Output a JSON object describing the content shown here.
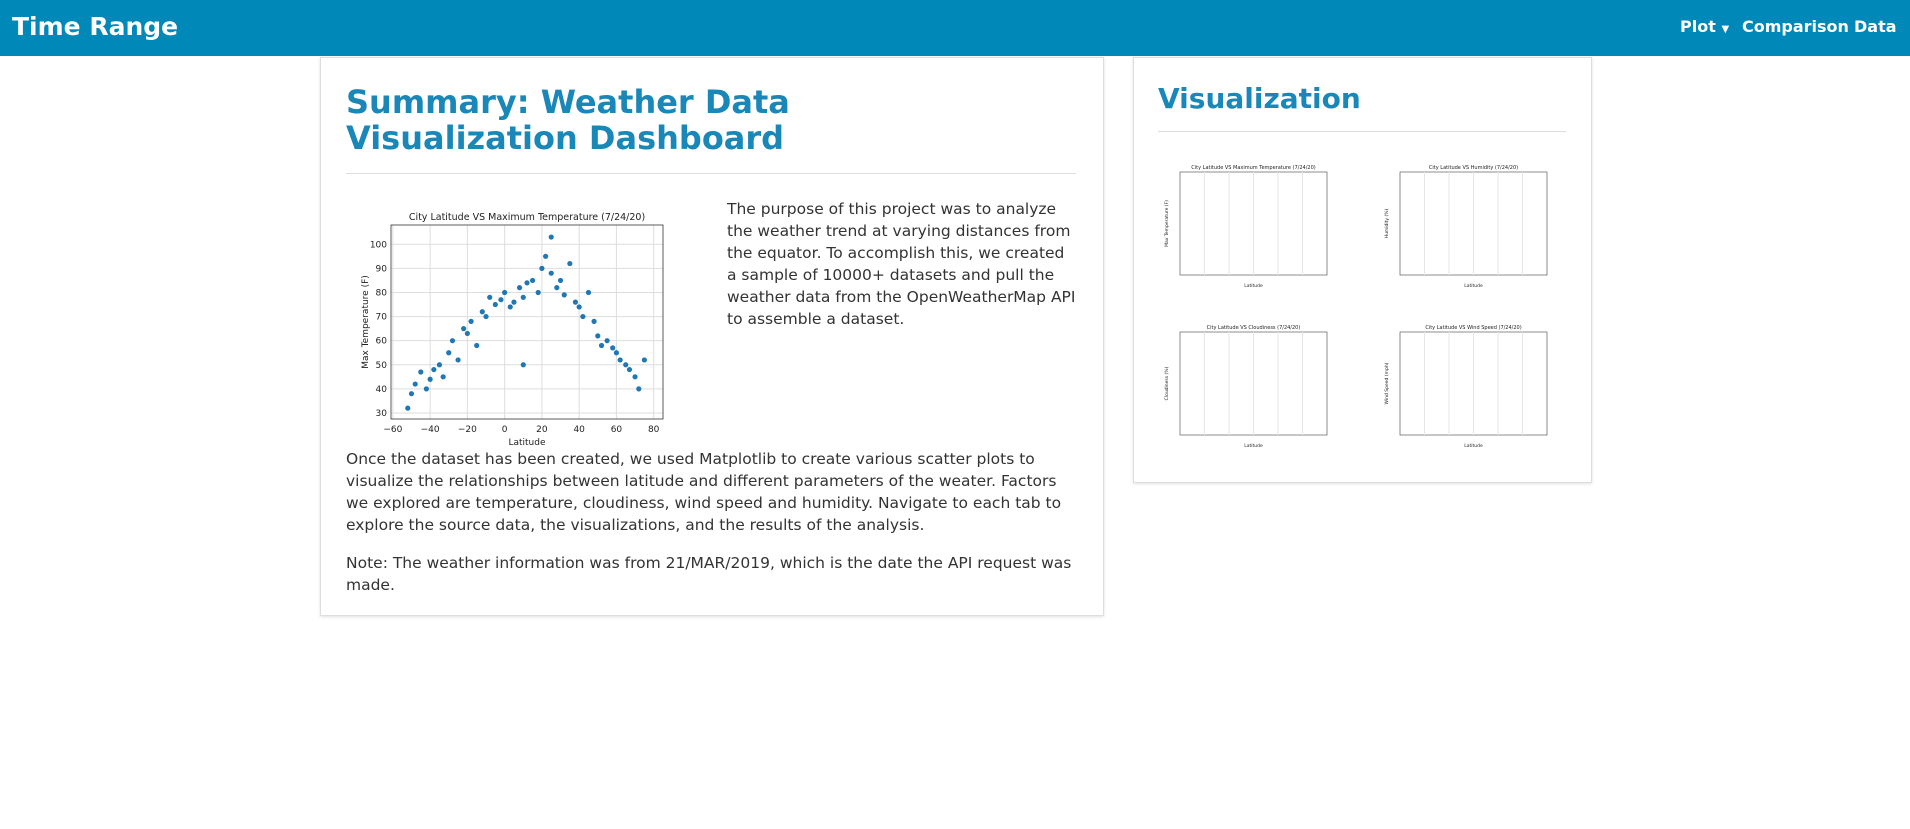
{
  "navbar": {
    "brand": "Time Range",
    "links": [
      "Plot",
      "Comparison",
      "Data"
    ]
  },
  "summary": {
    "title": "Summary: Weather Data Visualization Dashboard",
    "intro": "The purpose of this project was to analyze the weather trend at varying distances from the equator. To accomplish this, we created a sample of 10000+ datasets and pull the weather data from the OpenWeatherMap API to assemble a dataset.",
    "body": "Once the dataset has been created, we used Matplotlib to create various scatter plots to visualize the relationships between latitude and different parameters of the weater. Factors we explored are temperature, cloudiness, wind speed and humidity. Navigate to each tab to explore the source data, the visualizations, and the results of the analysis.",
    "note": "Note: The weather information was from 21/MAR/2019, which is the date the API request was made.",
    "figure": {
      "type": "scatter",
      "title": "City Latitude VS Maximum Temperature (7/24/20)",
      "x_label": "Latitude",
      "y_label": "Max Temperature (F)",
      "color": "#1f77b4",
      "grid": true,
      "xlim": [
        -61,
        85
      ],
      "ylim": [
        27.5,
        108
      ],
      "xticks": [
        {
          "value": -60,
          "label": "−60"
        },
        {
          "value": -40,
          "label": "−40"
        },
        {
          "value": -20,
          "label": "−20"
        },
        0,
        20,
        40,
        60,
        80
      ],
      "yticks": [
        30,
        40,
        50,
        60,
        70,
        80,
        90,
        100
      ],
      "x": [
        -50,
        -48,
        -45,
        -42,
        -40,
        -38,
        -35,
        -33,
        -30,
        -28,
        -25,
        -22,
        -20,
        -18,
        -15,
        -12,
        -10,
        -8,
        -5,
        -2,
        0,
        3,
        5,
        8,
        10,
        12,
        15,
        18,
        20,
        22,
        25,
        28,
        30,
        32,
        35,
        38,
        40,
        42,
        45,
        48,
        50,
        52,
        55,
        58,
        60,
        62,
        65,
        67,
        70,
        72,
        75,
        -52,
        10,
        25
      ],
      "y": [
        38,
        42,
        47,
        40,
        44,
        48,
        50,
        45,
        55,
        60,
        52,
        65,
        63,
        68,
        58,
        72,
        70,
        78,
        75,
        77,
        80,
        74,
        76,
        82,
        78,
        84,
        85,
        80,
        90,
        95,
        88,
        82,
        85,
        79,
        92,
        76,
        74,
        70,
        80,
        68,
        62,
        58,
        60,
        57,
        55,
        52,
        50,
        48,
        45,
        40,
        52,
        32,
        50,
        103
      ]
    }
  },
  "visualization": {
    "title": "Visualization",
    "thumbnails": [
      {
        "title": "City Latitude VS Maximum Temperature (7/24/20)",
        "x_label": "Latitude",
        "y_label": "Max Temperature (F)"
      },
      {
        "title": "City Latitude VS Humidity (7/24/20)",
        "x_label": "Latitude",
        "y_label": "Humidity (%)"
      },
      {
        "title": "City Latitude VS Cloudiness (7/24/20)",
        "x_label": "Latitude",
        "y_label": "Cloudiness (%)"
      },
      {
        "title": "City Latitude VS Wind Speed (7/24/20)",
        "x_label": "Latitude",
        "y_label": "Wind Speed (mph)"
      }
    ]
  }
}
